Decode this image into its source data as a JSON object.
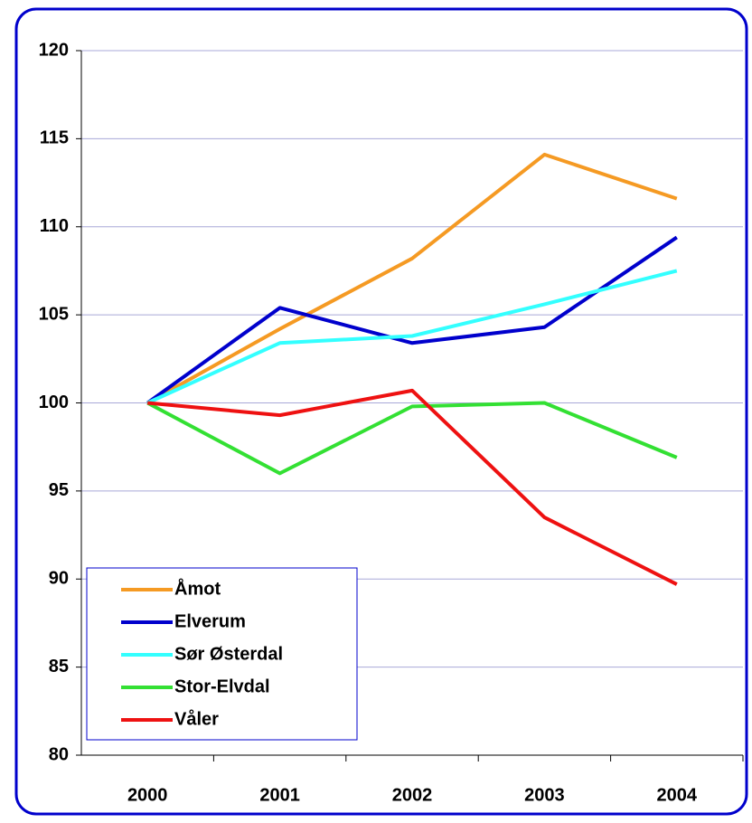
{
  "chart_data": {
    "type": "line",
    "categories": [
      "2000",
      "2001",
      "2002",
      "2003",
      "2004"
    ],
    "series": [
      {
        "name": "Åmot",
        "color": "#f59a23",
        "values": [
          100,
          104.2,
          108.2,
          114.1,
          111.6
        ]
      },
      {
        "name": "Elverum",
        "color": "#0000cc",
        "values": [
          100,
          105.4,
          103.4,
          104.3,
          109.4
        ]
      },
      {
        "name": "Sør Østerdal",
        "color": "#33ffff",
        "values": [
          100,
          103.4,
          103.8,
          105.6,
          107.5
        ]
      },
      {
        "name": "Stor-Elvdal",
        "color": "#33e033",
        "values": [
          100,
          96.0,
          99.8,
          100.0,
          96.9
        ]
      },
      {
        "name": "Våler",
        "color": "#ee1111",
        "values": [
          100,
          99.3,
          100.7,
          93.5,
          89.7
        ]
      }
    ],
    "ylim": [
      80,
      120
    ],
    "yticks": [
      80,
      85,
      90,
      95,
      100,
      105,
      110,
      115,
      120
    ],
    "grid": true,
    "legend": "lower-left"
  }
}
